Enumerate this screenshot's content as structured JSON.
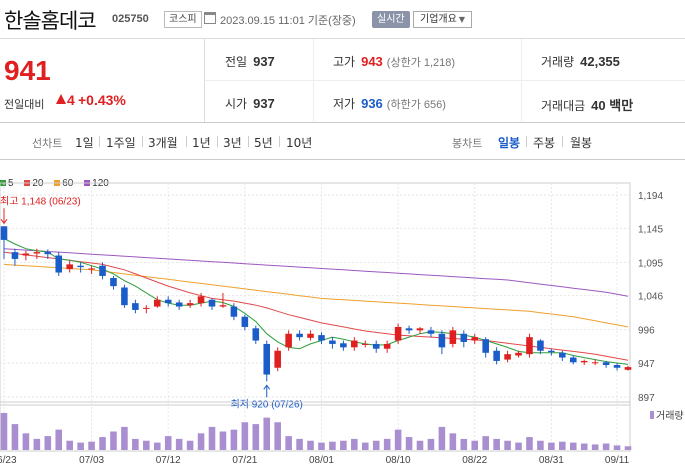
{
  "header": {
    "stock_name": "한솔홈데코",
    "stock_code": "025750",
    "market": "코스피",
    "datetime": "2023.09.15 11:01 기준(장중)",
    "realtime_label": "실시간",
    "overview_label": "기업개요",
    "calendar_icon": "calendar-icon"
  },
  "summary": {
    "price": "941",
    "change_label": "전일대비",
    "change_value": "4",
    "change_pct": "+0.43%",
    "colors": {
      "up": "#e02020",
      "down": "#1a5cc8"
    },
    "prev_close": {
      "label": "전일",
      "value": "937"
    },
    "high": {
      "label": "고가",
      "value": "943",
      "sub": "(상한가 1,218)"
    },
    "volume": {
      "label": "거래량",
      "value": "42,355"
    },
    "open": {
      "label": "시가",
      "value": "937"
    },
    "low": {
      "label": "저가",
      "value": "936",
      "sub": "(하한가 656)"
    },
    "trade_amount": {
      "label": "거래대금",
      "value": "40 백만"
    }
  },
  "period_bar": {
    "line_chart_label": "선차트",
    "line_options": [
      "1일",
      "1주일",
      "3개월",
      "1년",
      "3년",
      "5년",
      "10년"
    ],
    "candle_chart_label": "봉차트",
    "candle_options": [
      "일봉",
      "주봉",
      "월봉"
    ],
    "active_candle": "일봉"
  },
  "chart_data": {
    "type": "candlestick",
    "title": "",
    "legend": [
      {
        "name": "5",
        "color": "#2e9e3e"
      },
      {
        "name": "20",
        "color": "#e04a4a"
      },
      {
        "name": "60",
        "color": "#f0a030"
      },
      {
        "name": "120",
        "color": "#9b59c0"
      }
    ],
    "y_ticks": [
      "1,194",
      "1,145",
      "1,095",
      "1,046",
      "996",
      "947",
      "897"
    ],
    "y_min": 897,
    "y_max": 1194,
    "x_ticks": [
      "06/23",
      "07/03",
      "07/12",
      "07/21",
      "08/01",
      "08/10",
      "08/22",
      "08/31",
      "09/11"
    ],
    "x_tick_index": [
      0,
      8,
      15,
      22,
      29,
      36,
      43,
      50,
      56
    ],
    "annotations": {
      "high_label": "최고 1,148 (06/23)",
      "low_label": "최저 920 (07/26)",
      "high_index": 0,
      "high_value": 1148,
      "low_index": 24,
      "low_value": 920
    },
    "volume_label": "거래량",
    "candles": [
      [
        1148,
        1128,
        1148,
        1100
      ],
      [
        1110,
        1100,
        1115,
        1090
      ],
      [
        1105,
        1108,
        1112,
        1098
      ],
      [
        1108,
        1110,
        1115,
        1100
      ],
      [
        1110,
        1107,
        1114,
        1100
      ],
      [
        1105,
        1080,
        1110,
        1075
      ],
      [
        1085,
        1092,
        1098,
        1080
      ],
      [
        1090,
        1088,
        1095,
        1080
      ],
      [
        1086,
        1086,
        1090,
        1078
      ],
      [
        1090,
        1075,
        1095,
        1070
      ],
      [
        1072,
        1060,
        1075,
        1055
      ],
      [
        1058,
        1032,
        1062,
        1028
      ],
      [
        1035,
        1025,
        1040,
        1020
      ],
      [
        1028,
        1028,
        1032,
        1020
      ],
      [
        1030,
        1040,
        1045,
        1028
      ],
      [
        1040,
        1035,
        1045,
        1030
      ],
      [
        1036,
        1030,
        1040,
        1025
      ],
      [
        1032,
        1035,
        1040,
        1028
      ],
      [
        1035,
        1045,
        1050,
        1030
      ],
      [
        1040,
        1030,
        1042,
        1025
      ],
      [
        1030,
        1032,
        1050,
        1028
      ],
      [
        1030,
        1015,
        1035,
        1010
      ],
      [
        1015,
        1000,
        1018,
        995
      ],
      [
        998,
        980,
        1002,
        975
      ],
      [
        975,
        930,
        980,
        920
      ],
      [
        940,
        965,
        970,
        935
      ],
      [
        970,
        990,
        995,
        965
      ],
      [
        990,
        985,
        995,
        980
      ],
      [
        984,
        990,
        995,
        980
      ],
      [
        988,
        980,
        992,
        975
      ],
      [
        980,
        975,
        985,
        968
      ],
      [
        976,
        970,
        980,
        965
      ],
      [
        970,
        980,
        985,
        965
      ],
      [
        975,
        975,
        980,
        970
      ],
      [
        975,
        968,
        980,
        962
      ],
      [
        968,
        975,
        980,
        962
      ],
      [
        980,
        1000,
        1005,
        975
      ],
      [
        998,
        995,
        1002,
        990
      ],
      [
        995,
        998,
        1000,
        990
      ],
      [
        995,
        990,
        1000,
        985
      ],
      [
        990,
        970,
        995,
        960
      ],
      [
        975,
        995,
        1000,
        970
      ],
      [
        990,
        978,
        995,
        970
      ],
      [
        980,
        985,
        990,
        975
      ],
      [
        982,
        962,
        985,
        955
      ],
      [
        965,
        950,
        970,
        945
      ],
      [
        952,
        960,
        965,
        948
      ],
      [
        958,
        962,
        965,
        955
      ],
      [
        960,
        985,
        990,
        955
      ],
      [
        980,
        965,
        982,
        960
      ],
      [
        965,
        963,
        968,
        958
      ],
      [
        962,
        955,
        965,
        950
      ],
      [
        955,
        948,
        958,
        945
      ],
      [
        948,
        950,
        952,
        944
      ],
      [
        948,
        948,
        952,
        944
      ],
      [
        948,
        944,
        950,
        940
      ],
      [
        944,
        940,
        947,
        936
      ],
      [
        937,
        941,
        943,
        936
      ]
    ],
    "volumes": [
      40,
      28,
      18,
      12,
      15,
      22,
      10,
      8,
      9,
      14,
      20,
      25,
      12,
      10,
      8,
      15,
      12,
      10,
      18,
      25,
      20,
      22,
      30,
      28,
      35,
      30,
      15,
      12,
      10,
      8,
      9,
      10,
      12,
      8,
      10,
      12,
      22,
      14,
      10,
      12,
      25,
      18,
      12,
      10,
      15,
      12,
      10,
      8,
      14,
      10,
      8,
      9,
      8,
      7,
      6,
      7,
      5,
      4
    ],
    "ma5": [
      1130,
      1122,
      1115,
      1112,
      1110,
      1100,
      1098,
      1095,
      1090,
      1085,
      1078,
      1068,
      1060,
      1050,
      1040,
      1035,
      1032,
      1032,
      1035,
      1038,
      1036,
      1030,
      1020,
      1008,
      990,
      978,
      970,
      968,
      975,
      980,
      985,
      982,
      978,
      975,
      973,
      974,
      980,
      985,
      990,
      993,
      992,
      990,
      988,
      985,
      980,
      975,
      970,
      964,
      962,
      962,
      962,
      962,
      958,
      955,
      952,
      949,
      947,
      945
    ],
    "ma20": [
      1110,
      1108,
      1106,
      1104,
      1102,
      1100,
      1098,
      1096,
      1094,
      1092,
      1088,
      1084,
      1078,
      1072,
      1066,
      1060,
      1055,
      1050,
      1046,
      1042,
      1040,
      1038,
      1035,
      1032,
      1028,
      1023,
      1018,
      1014,
      1010,
      1006,
      1003,
      1000,
      997,
      994,
      992,
      990,
      988,
      987,
      986,
      985,
      984,
      983,
      982,
      981,
      980,
      978,
      976,
      974,
      972,
      970,
      968,
      966,
      964,
      962,
      960,
      957,
      954,
      951
    ],
    "ma60": [
      1092,
      1091,
      1090,
      1089,
      1088,
      1087,
      1086,
      1085,
      1084,
      1082,
      1080,
      1078,
      1076,
      1074,
      1072,
      1070,
      1068,
      1066,
      1064,
      1062,
      1060,
      1058,
      1056,
      1054,
      1052,
      1050,
      1048,
      1046,
      1044,
      1042,
      1041,
      1040,
      1039,
      1038,
      1037,
      1036,
      1035,
      1034,
      1033,
      1032,
      1031,
      1030,
      1029,
      1028,
      1027,
      1026,
      1025,
      1024,
      1023,
      1021,
      1019,
      1017,
      1015,
      1012,
      1009,
      1006,
      1003,
      1000
    ],
    "ma120": [
      1115,
      1114,
      1113,
      1112,
      1111,
      1110,
      1109,
      1108,
      1107,
      1106,
      1105,
      1104,
      1103,
      1102,
      1101,
      1100,
      1099,
      1098,
      1097,
      1096,
      1095,
      1094,
      1093,
      1092,
      1091,
      1090,
      1089,
      1088,
      1087,
      1086,
      1085,
      1084,
      1083,
      1082,
      1081,
      1080,
      1079,
      1078,
      1077,
      1076,
      1075,
      1074,
      1073,
      1072,
      1071,
      1070,
      1069,
      1067,
      1065,
      1063,
      1061,
      1059,
      1057,
      1055,
      1053,
      1051,
      1048,
      1045
    ]
  }
}
